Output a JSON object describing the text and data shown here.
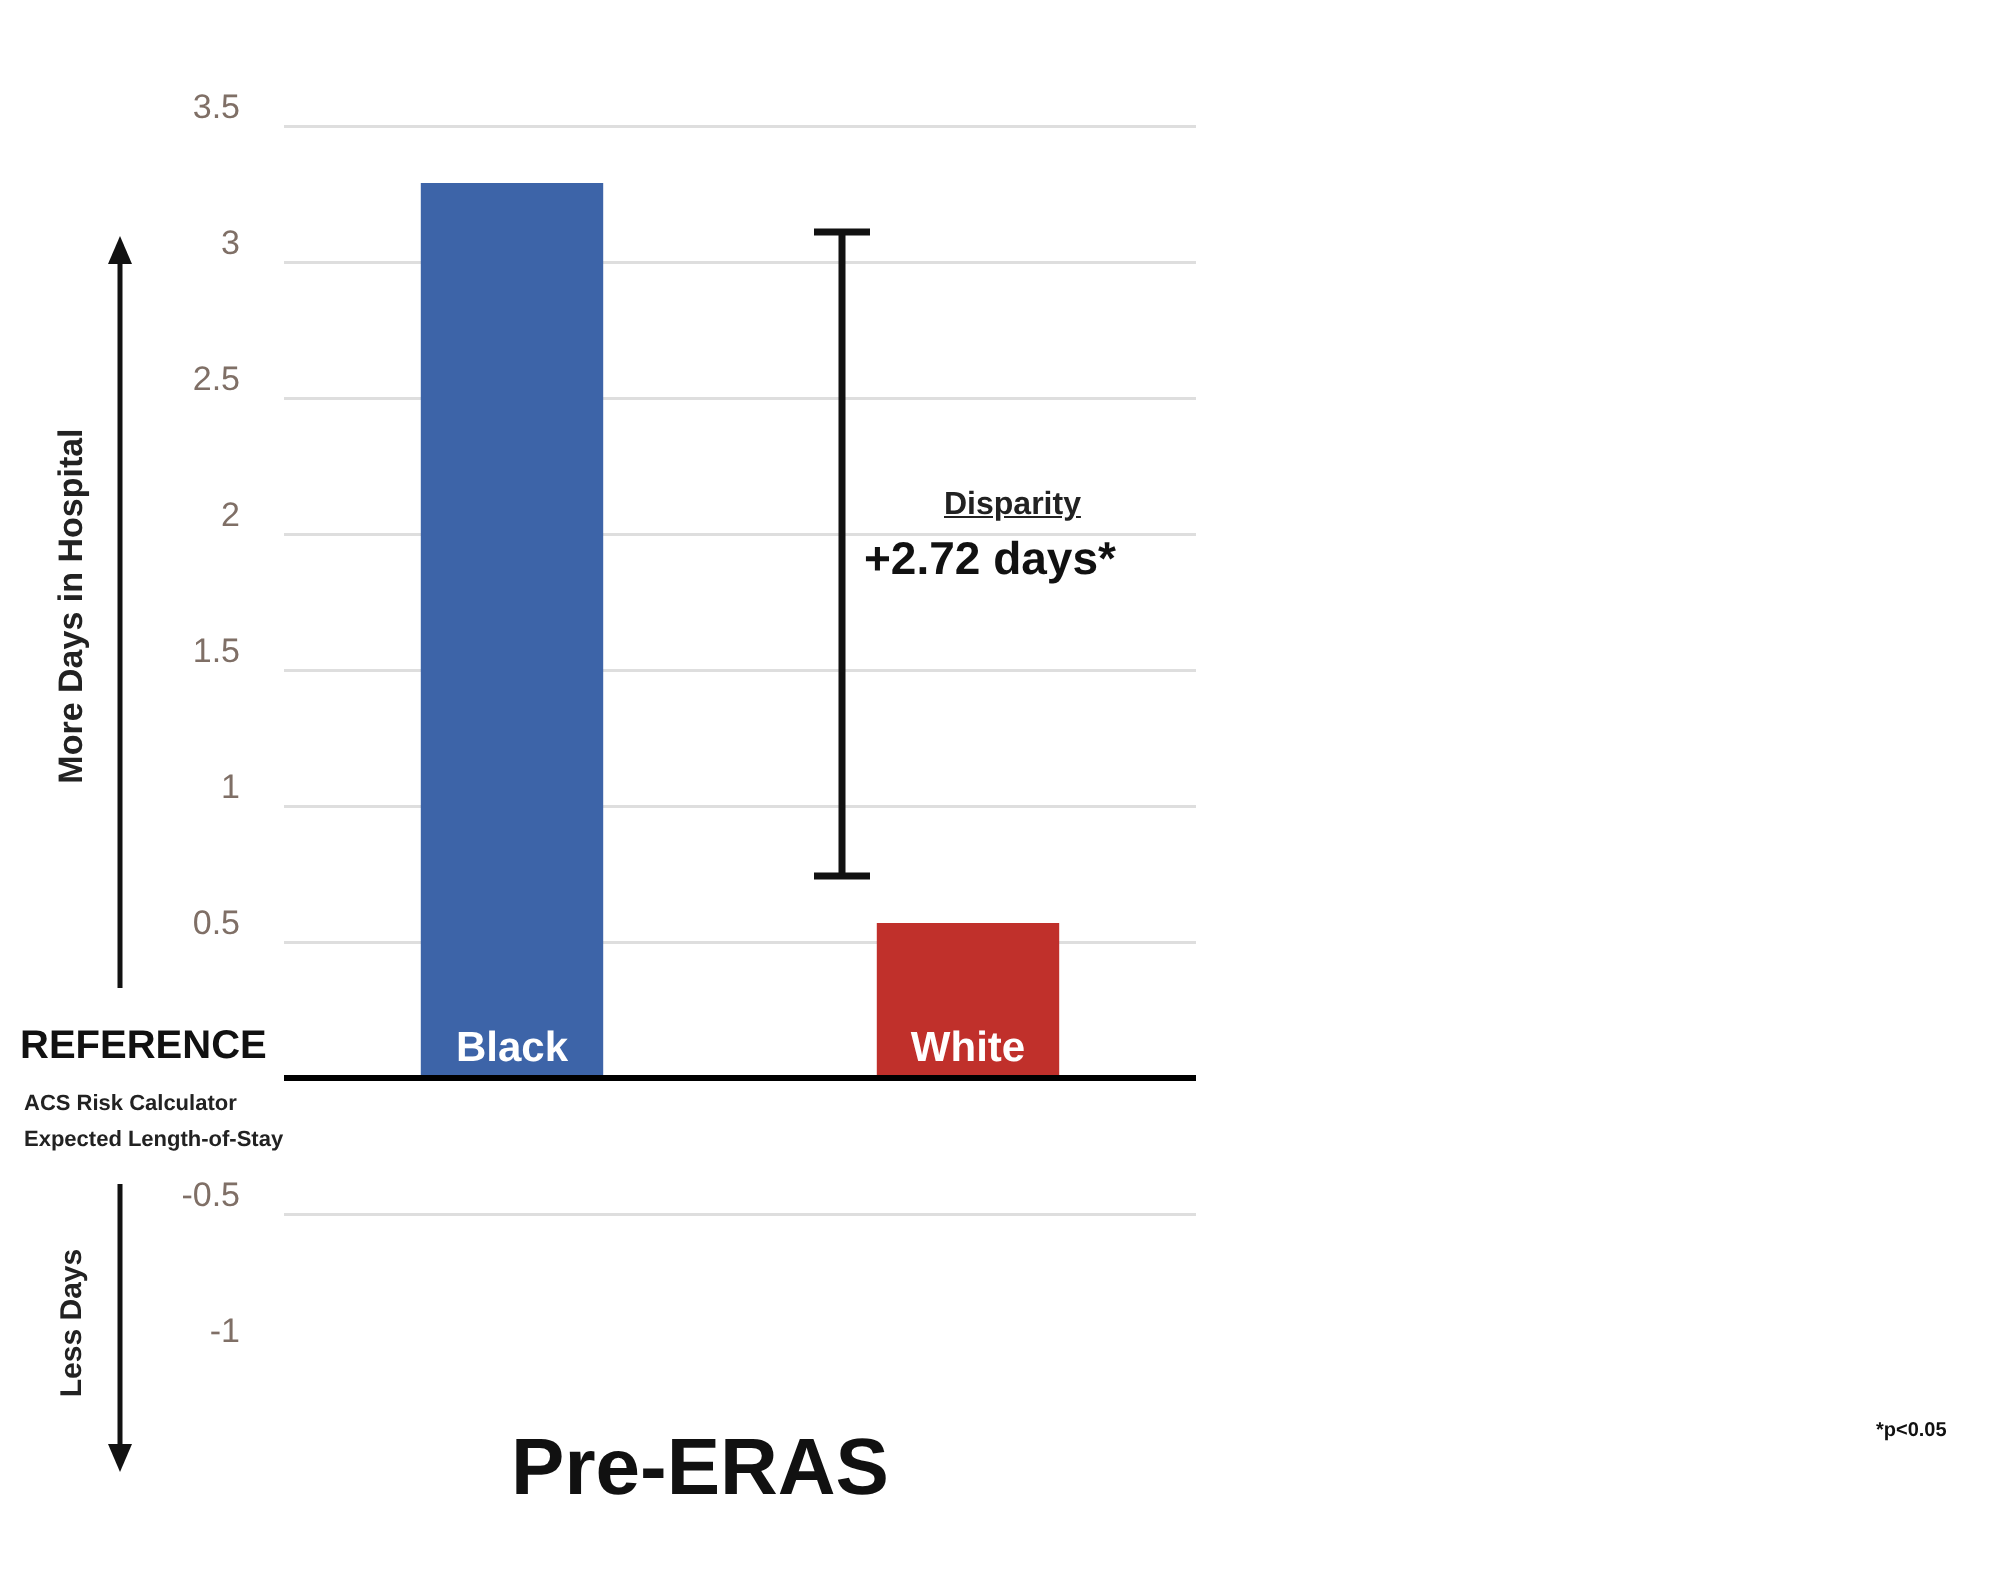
{
  "chart_data": {
    "type": "bar",
    "title": "Pre-ERAS",
    "ylabel": "More Days in Hospital",
    "categories": [
      "Black",
      "White"
    ],
    "series": [
      {
        "colors": [
          "#3d64a8",
          "#c0302b"
        ],
        "values": [
          3.29,
          0.57
        ]
      }
    ],
    "ylim": [
      -1,
      3.5
    ],
    "yticks": [
      -1,
      -0.5,
      {
        "value": 0,
        "label": null
      },
      0.5,
      1,
      1.5,
      2,
      2.5,
      3,
      3.5
    ],
    "grid": "y",
    "legend": false,
    "annotations": [
      "Less Days",
      "REFERENCE",
      "ACS Risk Calculator",
      "Expected Length-of-Stay",
      "Disparity",
      "+2.72 days*",
      "*p<0.05"
    ]
  }
}
